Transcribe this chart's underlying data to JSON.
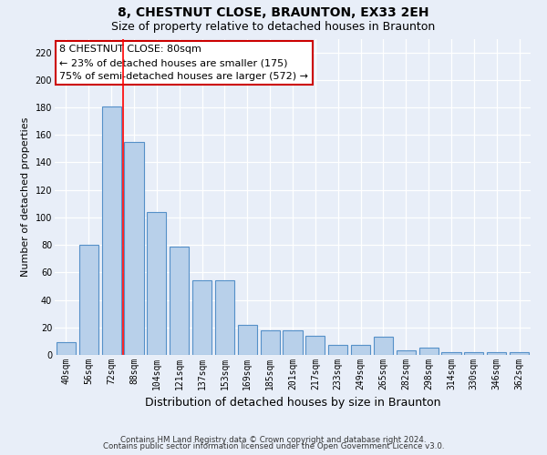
{
  "title": "8, CHESTNUT CLOSE, BRAUNTON, EX33 2EH",
  "subtitle": "Size of property relative to detached houses in Braunton",
  "xlabel": "Distribution of detached houses by size in Braunton",
  "ylabel": "Number of detached properties",
  "footnote1": "Contains HM Land Registry data © Crown copyright and database right 2024.",
  "footnote2": "Contains public sector information licensed under the Open Government Licence v3.0.",
  "categories": [
    "40sqm",
    "56sqm",
    "72sqm",
    "88sqm",
    "104sqm",
    "121sqm",
    "137sqm",
    "153sqm",
    "169sqm",
    "185sqm",
    "201sqm",
    "217sqm",
    "233sqm",
    "249sqm",
    "265sqm",
    "282sqm",
    "298sqm",
    "314sqm",
    "330sqm",
    "346sqm",
    "362sqm"
  ],
  "values": [
    9,
    80,
    181,
    155,
    104,
    79,
    54,
    54,
    22,
    18,
    18,
    14,
    7,
    7,
    13,
    3,
    5,
    2,
    2,
    2,
    2
  ],
  "bar_color": "#b8d0ea",
  "bar_edge_color": "#5590c8",
  "red_line_index": 2,
  "annotation_title": "8 CHESTNUT CLOSE: 80sqm",
  "annotation_line2": "← 23% of detached houses are smaller (175)",
  "annotation_line3": "75% of semi-detached houses are larger (572) →",
  "annotation_box_facecolor": "#ffffff",
  "annotation_box_edgecolor": "#cc0000",
  "ylim": [
    0,
    230
  ],
  "yticks": [
    0,
    20,
    40,
    60,
    80,
    100,
    120,
    140,
    160,
    180,
    200,
    220
  ],
  "background_color": "#e8eef8",
  "grid_color": "#ffffff",
  "title_fontsize": 10,
  "subtitle_fontsize": 9,
  "ylabel_fontsize": 8,
  "xlabel_fontsize": 9,
  "tick_fontsize": 7,
  "annot_fontsize": 8
}
